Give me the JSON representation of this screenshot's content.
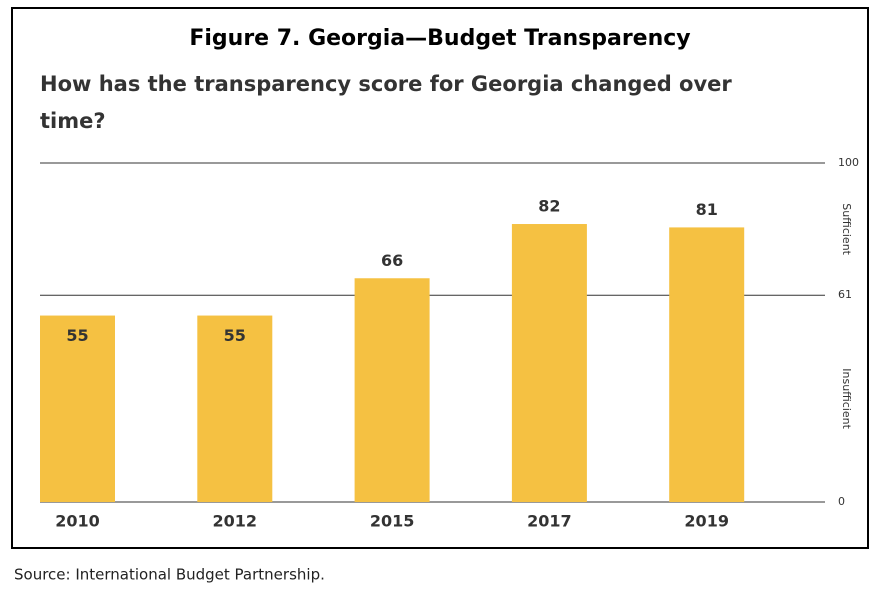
{
  "chart_data": {
    "type": "bar",
    "title": "Figure 7. Georgia—Budget Transparency",
    "subtitle": [
      "How has the transparency score for Georgia changed over",
      "time?"
    ],
    "source": "Source: International Budget Partnership.",
    "categories": [
      "2010",
      "2012",
      "2015",
      "2017",
      "2019"
    ],
    "values": [
      55,
      55,
      66,
      82,
      81
    ],
    "color": "#f5c142",
    "ylim": [
      0,
      100
    ],
    "yticks": [
      0,
      61,
      100
    ],
    "grid": true,
    "zones": [
      {
        "label": "Sufficient",
        "from": 61,
        "to": 100
      },
      {
        "label": "Insufficient",
        "from": 0,
        "to": 61
      }
    ]
  }
}
